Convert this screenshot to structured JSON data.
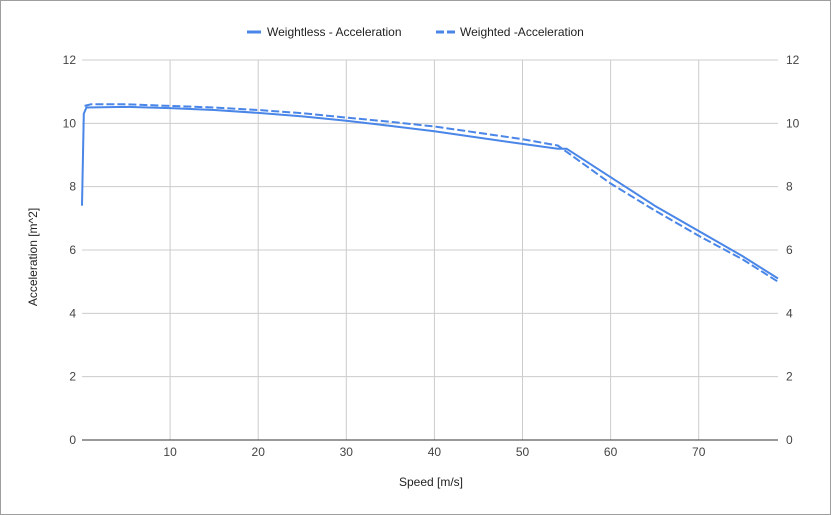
{
  "chart_data": {
    "type": "line",
    "xlabel": "Speed [m/s]",
    "ylabel": "Acceleration [m^2]",
    "xlim": [
      0,
      79
    ],
    "ylim": [
      0,
      12
    ],
    "x_ticks": [
      10,
      20,
      30,
      40,
      50,
      60,
      70
    ],
    "y_ticks": [
      0,
      2,
      4,
      6,
      8,
      10,
      12
    ],
    "grid": true,
    "legend_position": "top",
    "dual_y_axis_labels": true,
    "series": [
      {
        "name": "Weightless - Acceleration",
        "style": "solid",
        "color": "#4a86e8",
        "points": [
          [
            0,
            7.4
          ],
          [
            0.2,
            10.3
          ],
          [
            0.5,
            10.5
          ],
          [
            5,
            10.52
          ],
          [
            10,
            10.48
          ],
          [
            15,
            10.42
          ],
          [
            20,
            10.33
          ],
          [
            25,
            10.22
          ],
          [
            30,
            10.08
          ],
          [
            35,
            9.92
          ],
          [
            40,
            9.75
          ],
          [
            45,
            9.55
          ],
          [
            50,
            9.35
          ],
          [
            54,
            9.2
          ],
          [
            55,
            9.2
          ],
          [
            60,
            8.3
          ],
          [
            65,
            7.4
          ],
          [
            70,
            6.6
          ],
          [
            75,
            5.8
          ],
          [
            79,
            5.1
          ]
        ]
      },
      {
        "name": "Weighted -Acceleration",
        "style": "dashed",
        "color": "#4a86e8",
        "points": [
          [
            0.3,
            10.55
          ],
          [
            1,
            10.6
          ],
          [
            5,
            10.6
          ],
          [
            10,
            10.55
          ],
          [
            15,
            10.5
          ],
          [
            20,
            10.42
          ],
          [
            25,
            10.32
          ],
          [
            30,
            10.18
          ],
          [
            35,
            10.05
          ],
          [
            40,
            9.9
          ],
          [
            45,
            9.7
          ],
          [
            50,
            9.5
          ],
          [
            54,
            9.3
          ],
          [
            55,
            9.1
          ],
          [
            60,
            8.1
          ],
          [
            65,
            7.25
          ],
          [
            70,
            6.45
          ],
          [
            75,
            5.7
          ],
          [
            79,
            5.0
          ]
        ]
      }
    ]
  }
}
